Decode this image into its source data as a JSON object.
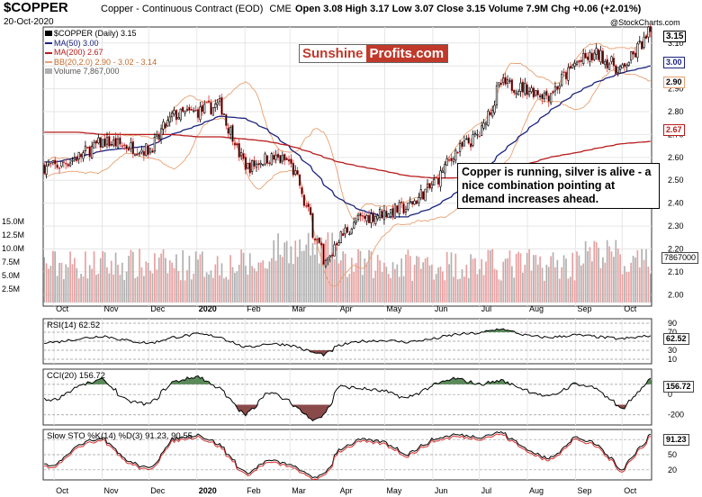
{
  "header": {
    "ticker": "$COPPER",
    "description": "Copper - Continuous Contract (EOD)",
    "exchange": "CME",
    "date": "20-Oct-2020",
    "ohlc": "Open 3.08  High 3.17  Low 3.07  Close 3.15  Volume 7.9M  Chg +0.06 (+2.01%)",
    "brand": "@StockCharts.com"
  },
  "legend": {
    "main": "$COPPER (Daily) 3.15",
    "ma50": "MA(50) 3.00",
    "ma200": "MA(200) 2.67",
    "bb": "BB(20,2.0) 2.90 - 3.02 - 3.14",
    "volume": "Volume 7,867,000"
  },
  "logo": {
    "part1": "Sunshine",
    "part2": "Profits.com"
  },
  "annotation": "Copper is running, silver is alive - a nice combination pointing at demand increases ahead.",
  "colors": {
    "ma50": "#1a237e",
    "ma200": "#b71c1c",
    "bb": "#e8a070",
    "up_volume": "#e8a0a0",
    "down_volume": "#b0b0b0",
    "osc_green": "#5a8a5a",
    "osc_red": "#8b4a4a"
  },
  "chart_data": [
    {
      "type": "candlestick",
      "title": "$COPPER (Daily) 3.15",
      "x_tick_labels": [
        "Oct",
        "Nov",
        "Dec",
        "2020",
        "Feb",
        "Mar",
        "Apr",
        "May",
        "Jun",
        "Jul",
        "Aug",
        "Sep",
        "Oct"
      ],
      "y_tick_labels": [
        "2.00",
        "2.10",
        "2.20",
        "2.30",
        "2.40",
        "2.50",
        "2.60",
        "2.70",
        "2.80",
        "2.90",
        "3.00",
        "3.10"
      ],
      "ylim": [
        1.95,
        3.17
      ],
      "price_labels": [
        "3.15",
        "3.00",
        "2.90",
        "2.67"
      ],
      "close_approx": {
        "x": [
          "2019-10-01",
          "2019-10-15",
          "2019-11-01",
          "2019-11-15",
          "2019-12-01",
          "2019-12-15",
          "2020-01-01",
          "2020-01-15",
          "2020-02-01",
          "2020-02-15",
          "2020-03-01",
          "2020-03-15",
          "2020-03-23",
          "2020-04-01",
          "2020-04-15",
          "2020-05-01",
          "2020-05-15",
          "2020-06-01",
          "2020-06-15",
          "2020-07-01",
          "2020-07-15",
          "2020-08-01",
          "2020-08-15",
          "2020-09-01",
          "2020-09-15",
          "2020-10-01",
          "2020-10-20"
        ],
        "values": [
          2.56,
          2.6,
          2.67,
          2.65,
          2.63,
          2.78,
          2.8,
          2.83,
          2.55,
          2.6,
          2.58,
          2.3,
          2.12,
          2.25,
          2.33,
          2.36,
          2.38,
          2.48,
          2.62,
          2.7,
          2.92,
          2.9,
          2.87,
          3.01,
          3.05,
          2.98,
          3.15
        ]
      },
      "ma50_approx": [
        2.58,
        2.6,
        2.63,
        2.64,
        2.65,
        2.7,
        2.74,
        2.78,
        2.77,
        2.72,
        2.64,
        2.55,
        2.48,
        2.42,
        2.37,
        2.34,
        2.34,
        2.38,
        2.44,
        2.52,
        2.62,
        2.72,
        2.8,
        2.88,
        2.93,
        2.97,
        3.0
      ],
      "ma200_approx": [
        2.71,
        2.71,
        2.7,
        2.7,
        2.7,
        2.7,
        2.69,
        2.69,
        2.68,
        2.67,
        2.65,
        2.62,
        2.6,
        2.58,
        2.56,
        2.54,
        2.52,
        2.51,
        2.51,
        2.52,
        2.54,
        2.57,
        2.6,
        2.62,
        2.64,
        2.66,
        2.67
      ]
    },
    {
      "type": "bar",
      "title": "Volume 7,867,000",
      "y_tick_labels": [
        "2.5M",
        "5.0M",
        "7.5M",
        "10.0M",
        "12.5M",
        "15.0M"
      ],
      "ylim": [
        0,
        16
      ],
      "last_value_label": "7867000"
    },
    {
      "type": "line",
      "title": "RSI(14) 62.52",
      "y_tick_labels": [
        "90",
        "70",
        "50",
        "30",
        "10"
      ],
      "ylim": [
        0,
        100
      ],
      "last_value_label": "62.52",
      "values_approx": [
        48,
        55,
        62,
        52,
        45,
        58,
        66,
        60,
        35,
        45,
        42,
        25,
        20,
        40,
        50,
        52,
        48,
        55,
        65,
        68,
        78,
        62,
        58,
        64,
        60,
        55,
        62.5
      ]
    },
    {
      "type": "line",
      "title": "CCI(20) 156.72",
      "y_tick_labels": [
        "100",
        "0",
        "-200"
      ],
      "ylim": [
        -300,
        250
      ],
      "last_value_label": "156.72",
      "values_approx": [
        -50,
        80,
        150,
        -60,
        -100,
        120,
        180,
        60,
        -220,
        40,
        -80,
        -250,
        -200,
        80,
        60,
        30,
        -40,
        90,
        160,
        100,
        140,
        40,
        -30,
        110,
        60,
        -150,
        156.7
      ]
    },
    {
      "type": "line",
      "title": "Slow STO %K(14) %D(3) 91.23, 90.55",
      "series_names": [
        "%K(14) 91.23",
        "%D(3) 90.55"
      ],
      "y_tick_labels": [
        "80",
        "50",
        "20"
      ],
      "ylim": [
        0,
        100
      ],
      "last_value_label": "91.23",
      "values_approx": [
        30,
        70,
        85,
        40,
        20,
        80,
        90,
        70,
        10,
        40,
        30,
        5,
        10,
        60,
        80,
        75,
        50,
        80,
        90,
        85,
        95,
        60,
        40,
        85,
        70,
        20,
        91.2
      ]
    }
  ]
}
